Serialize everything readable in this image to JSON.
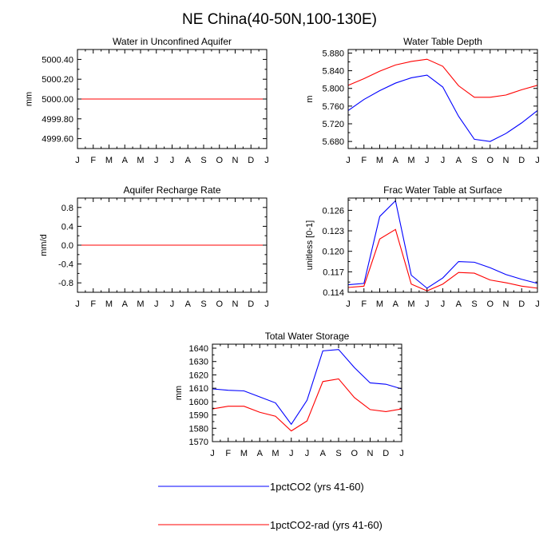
{
  "title": "NE China(40-50N,100-130E)",
  "colors": {
    "series1": "#0000ff",
    "series2": "#ff0000",
    "axis": "#000000"
  },
  "legend": {
    "entries": [
      {
        "label": "1pctCO2 (yrs 41-60)",
        "color": "#0000ff"
      },
      {
        "label": "1pctCO2-rad (yrs 41-60)",
        "color": "#ff0000"
      }
    ]
  },
  "chart_data": [
    {
      "type": "line",
      "title": "Water in Unconfined Aquifer",
      "ylabel": "mm",
      "categories": [
        "J",
        "F",
        "M",
        "A",
        "M",
        "J",
        "J",
        "A",
        "S",
        "O",
        "N",
        "D",
        "J"
      ],
      "ylim": [
        4999.5,
        5000.5
      ],
      "yticks": [
        4999.6,
        4999.8,
        5000.0,
        5000.2,
        5000.4
      ],
      "ytick_labels": [
        "4999.60",
        "4999.80",
        "5000.00",
        "5000.20",
        "5000.40"
      ],
      "series": [
        {
          "color": "#0000ff",
          "values": [
            5000,
            5000,
            5000,
            5000,
            5000,
            5000,
            5000,
            5000,
            5000,
            5000,
            5000,
            5000,
            5000
          ]
        },
        {
          "color": "#ff0000",
          "values": [
            5000,
            5000,
            5000,
            5000,
            5000,
            5000,
            5000,
            5000,
            5000,
            5000,
            5000,
            5000,
            5000
          ]
        }
      ]
    },
    {
      "type": "line",
      "title": "Water Table Depth",
      "ylabel": "m",
      "categories": [
        "J",
        "F",
        "M",
        "A",
        "M",
        "J",
        "J",
        "A",
        "S",
        "O",
        "N",
        "D",
        "J"
      ],
      "ylim": [
        5.664,
        5.888
      ],
      "yticks": [
        5.68,
        5.72,
        5.76,
        5.8,
        5.84,
        5.88
      ],
      "ytick_labels": [
        "5.680",
        "5.720",
        "5.760",
        "5.800",
        "5.840",
        "5.880"
      ],
      "series": [
        {
          "color": "#0000ff",
          "values": [
            5.75,
            5.775,
            5.795,
            5.812,
            5.824,
            5.83,
            5.803,
            5.737,
            5.685,
            5.68,
            5.698,
            5.722,
            5.75
          ]
        },
        {
          "color": "#ff0000",
          "values": [
            5.807,
            5.822,
            5.839,
            5.853,
            5.861,
            5.866,
            5.85,
            5.806,
            5.78,
            5.78,
            5.785,
            5.797,
            5.807
          ]
        }
      ]
    },
    {
      "type": "line",
      "title": "Aquifer Recharge Rate",
      "ylabel": "mm/d",
      "categories": [
        "J",
        "F",
        "M",
        "A",
        "M",
        "J",
        "J",
        "A",
        "S",
        "O",
        "N",
        "D",
        "J"
      ],
      "ylim": [
        -1.0,
        1.0
      ],
      "yticks": [
        -0.8,
        -0.4,
        0.0,
        0.4,
        0.8
      ],
      "ytick_labels": [
        "-0.8",
        "-0.4",
        "0.0",
        "0.4",
        "0.8"
      ],
      "series": [
        {
          "color": "#0000ff",
          "values": [
            0,
            0,
            0,
            0,
            0,
            0,
            0,
            0,
            0,
            0,
            0,
            0,
            0
          ]
        },
        {
          "color": "#ff0000",
          "values": [
            0,
            0,
            0,
            0,
            0,
            0,
            0,
            0,
            0,
            0,
            0,
            0,
            0
          ]
        }
      ]
    },
    {
      "type": "line",
      "title": "Frac Water Table at Surface",
      "ylabel": "unitless [0-1]",
      "categories": [
        "J",
        "F",
        "M",
        "A",
        "M",
        "J",
        "J",
        "A",
        "S",
        "O",
        "N",
        "D",
        "J"
      ],
      "ylim": [
        0.114,
        0.1278
      ],
      "yticks": [
        0.114,
        0.117,
        0.12,
        0.123,
        0.126
      ],
      "ytick_labels": [
        "0.114",
        "0.117",
        "0.120",
        "0.123",
        "0.126"
      ],
      "series": [
        {
          "color": "#0000ff",
          "values": [
            0.1151,
            0.1153,
            0.1251,
            0.1274,
            0.1165,
            0.1146,
            0.1161,
            0.1185,
            0.1184,
            0.1176,
            0.1166,
            0.1159,
            0.1153
          ]
        },
        {
          "color": "#ff0000",
          "values": [
            0.1147,
            0.1149,
            0.1218,
            0.1232,
            0.1152,
            0.1142,
            0.1152,
            0.1169,
            0.1168,
            0.1158,
            0.1154,
            0.1149,
            0.1146
          ]
        }
      ]
    },
    {
      "type": "line",
      "title": "Total Water Storage",
      "ylabel": "mm",
      "categories": [
        "J",
        "F",
        "M",
        "A",
        "M",
        "J",
        "J",
        "A",
        "S",
        "O",
        "N",
        "D",
        "J"
      ],
      "ylim": [
        1570,
        1643
      ],
      "yticks": [
        1570,
        1580,
        1590,
        1600,
        1610,
        1620,
        1630,
        1640
      ],
      "ytick_labels": [
        "1570",
        "1580",
        "1590",
        "1600",
        "1610",
        "1620",
        "1630",
        "1640"
      ],
      "series": [
        {
          "color": "#0000ff",
          "values": [
            1609.5,
            1608.5,
            1608,
            1603.5,
            1599,
            1583,
            1601,
            1638,
            1639,
            1625.5,
            1614,
            1613,
            1609.5
          ]
        },
        {
          "color": "#ff0000",
          "values": [
            1594.5,
            1596.5,
            1596.5,
            1592,
            1589,
            1578,
            1585.5,
            1615,
            1617,
            1603,
            1594,
            1592.5,
            1594.5
          ]
        }
      ]
    }
  ]
}
